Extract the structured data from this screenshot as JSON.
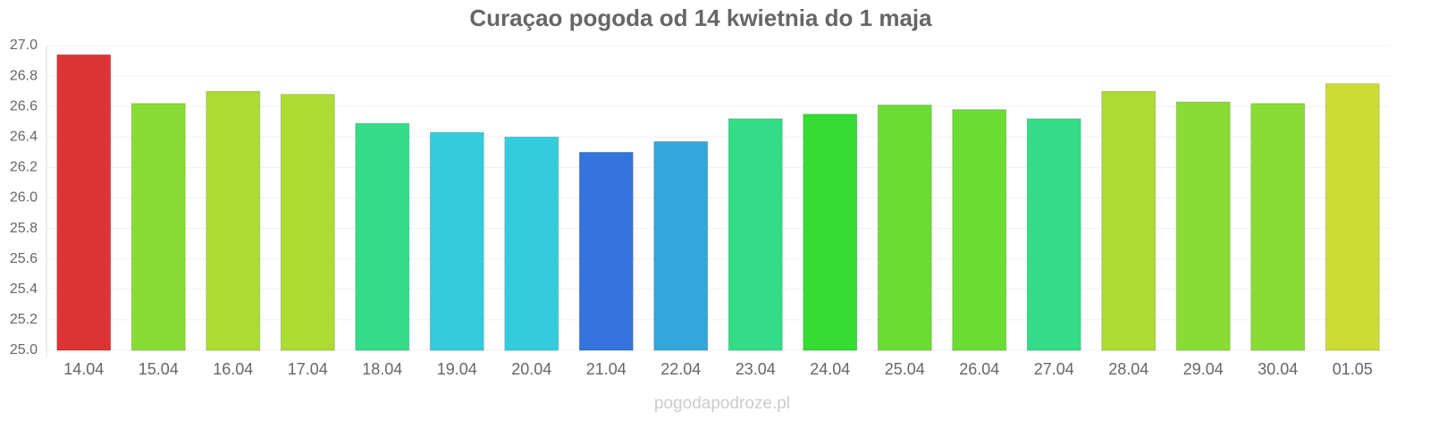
{
  "chart_data": {
    "type": "bar",
    "title": "Curaçao pogoda od 14 kwietnia do 1 maja",
    "categories": [
      "14.04",
      "15.04",
      "16.04",
      "17.04",
      "18.04",
      "19.04",
      "20.04",
      "21.04",
      "22.04",
      "23.04",
      "24.04",
      "25.04",
      "26.04",
      "27.04",
      "28.04",
      "29.04",
      "30.04",
      "01.05"
    ],
    "values": [
      26.94,
      26.62,
      26.7,
      26.68,
      26.49,
      26.43,
      26.4,
      26.3,
      26.37,
      26.52,
      26.55,
      26.61,
      26.58,
      26.52,
      26.7,
      26.63,
      26.62,
      26.75
    ],
    "colors": [
      "#dc3434",
      "#88dc34",
      "#acdc34",
      "#acdc34",
      "#34dc88",
      "#34ccdc",
      "#34ccdc",
      "#3474dc",
      "#34a6dc",
      "#34dc88",
      "#34dc34",
      "#6adc34",
      "#6adc34",
      "#34dc88",
      "#acdc34",
      "#88dc34",
      "#88dc34",
      "#ccdc34"
    ],
    "ylim": [
      25.0,
      27.0
    ],
    "yticks": [
      {
        "value": 25.0,
        "label": "25.0"
      },
      25.2,
      25.4,
      25.6,
      25.8,
      {
        "value": 26.0,
        "label": "26.0"
      },
      26.2,
      26.4,
      26.6,
      26.8,
      {
        "value": 27.0,
        "label": "27.0"
      }
    ],
    "grid": true,
    "footer": "pogodapodroze.pl"
  }
}
